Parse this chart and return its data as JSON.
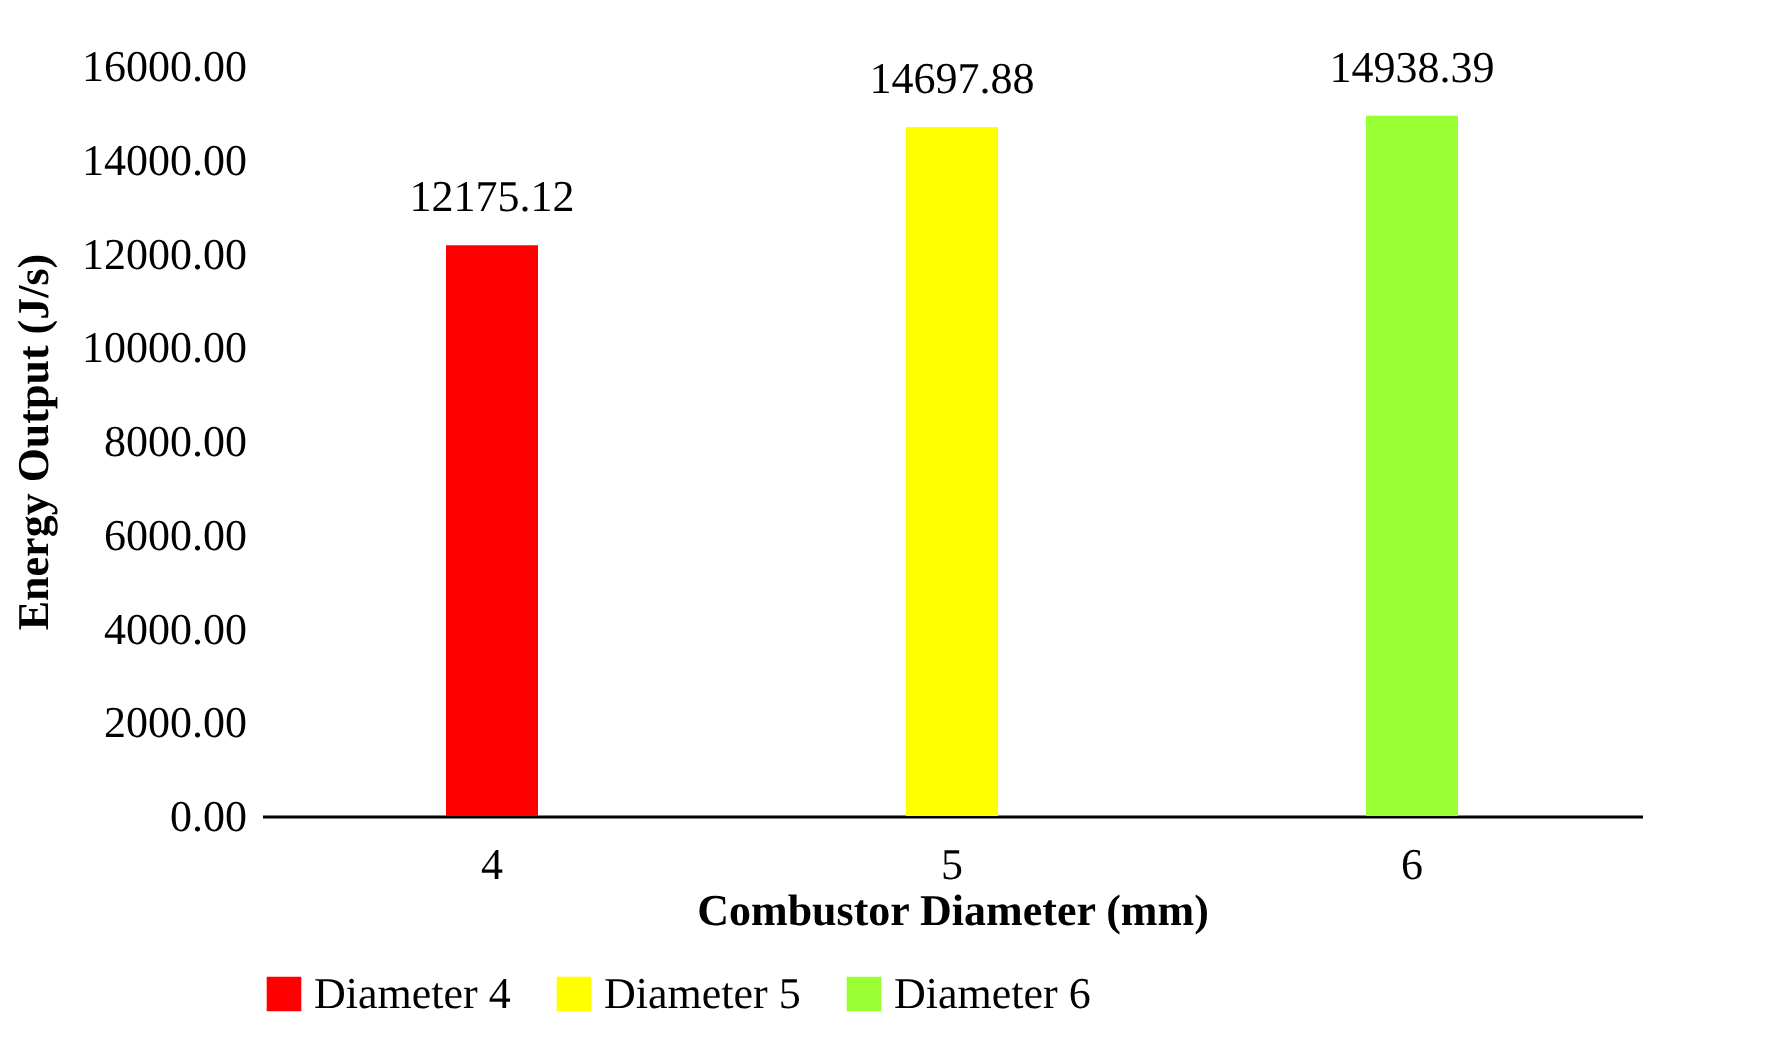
{
  "chart_data": {
    "type": "bar",
    "xlabel": "Combustor Diameter (mm)",
    "ylabel": "Energy Output (J/s)",
    "categories": [
      "4",
      "5",
      "6"
    ],
    "series": [
      {
        "name": "Diameter 4",
        "color": "#ff0000",
        "values": [
          12175.12,
          null,
          null
        ]
      },
      {
        "name": "Diameter 5",
        "color": "#ffff00",
        "values": [
          null,
          14697.88,
          null
        ]
      },
      {
        "name": "Diameter 6",
        "color": "#99ff33",
        "values": [
          null,
          null,
          14938.39
        ]
      }
    ],
    "ylim": [
      0,
      16000
    ],
    "yticks": [
      {
        "value": 0,
        "label": "0.00"
      },
      {
        "value": 2000,
        "label": "2000.00"
      },
      {
        "value": 4000,
        "label": "4000.00"
      },
      {
        "value": 6000,
        "label": "6000.00"
      },
      {
        "value": 8000,
        "label": "8000.00"
      },
      {
        "value": 10000,
        "label": "10000.00"
      },
      {
        "value": 12000,
        "label": "12000.00"
      },
      {
        "value": 14000,
        "label": "14000.00"
      },
      {
        "value": 16000,
        "label": "16000.00"
      }
    ],
    "data_labels": true,
    "grid": false,
    "legend": "bottom"
  }
}
